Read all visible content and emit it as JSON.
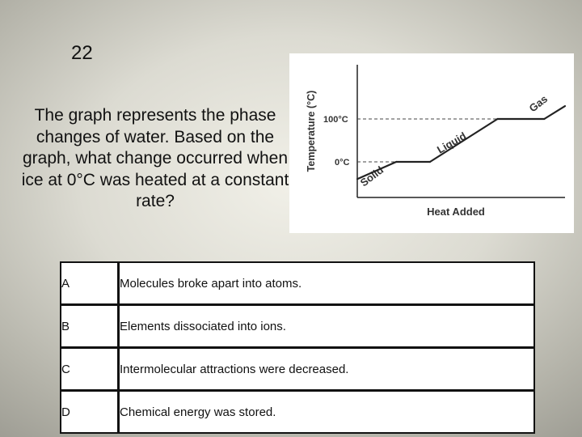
{
  "slide": {
    "number": "22",
    "question": "The graph represents the phase changes of water. Based on the graph, what change occurred when ice at 0°C was heated at a constant rate?"
  },
  "chart_data": {
    "type": "line",
    "title": "",
    "xlabel": "Heat Added",
    "ylabel": "Temperature (°C)",
    "y_ticks": [
      "100°C",
      "0°C"
    ],
    "segments": [
      {
        "phase": "Solid",
        "heat_start": 0,
        "heat_end": 15,
        "temp_start": -40,
        "temp_end": 0
      },
      {
        "phase": "",
        "heat_start": 15,
        "heat_end": 28,
        "temp_start": 0,
        "temp_end": 0
      },
      {
        "phase": "Liquid",
        "heat_start": 28,
        "heat_end": 54,
        "temp_start": 0,
        "temp_end": 100
      },
      {
        "phase": "",
        "heat_start": 54,
        "heat_end": 72,
        "temp_start": 100,
        "temp_end": 100
      },
      {
        "phase": "Gas",
        "heat_start": 72,
        "heat_end": 80,
        "temp_start": 100,
        "temp_end": 130
      }
    ],
    "labels": [
      "Solid",
      "Liquid",
      "Gas"
    ],
    "reference_lines": [
      0,
      100
    ]
  },
  "answers": [
    {
      "letter": "A",
      "text": "Molecules broke apart into atoms."
    },
    {
      "letter": "B",
      "text": "Elements dissociated into ions."
    },
    {
      "letter": "C",
      "text": "Intermolecular attractions were decreased."
    },
    {
      "letter": "D",
      "text": "Chemical energy was stored."
    }
  ]
}
